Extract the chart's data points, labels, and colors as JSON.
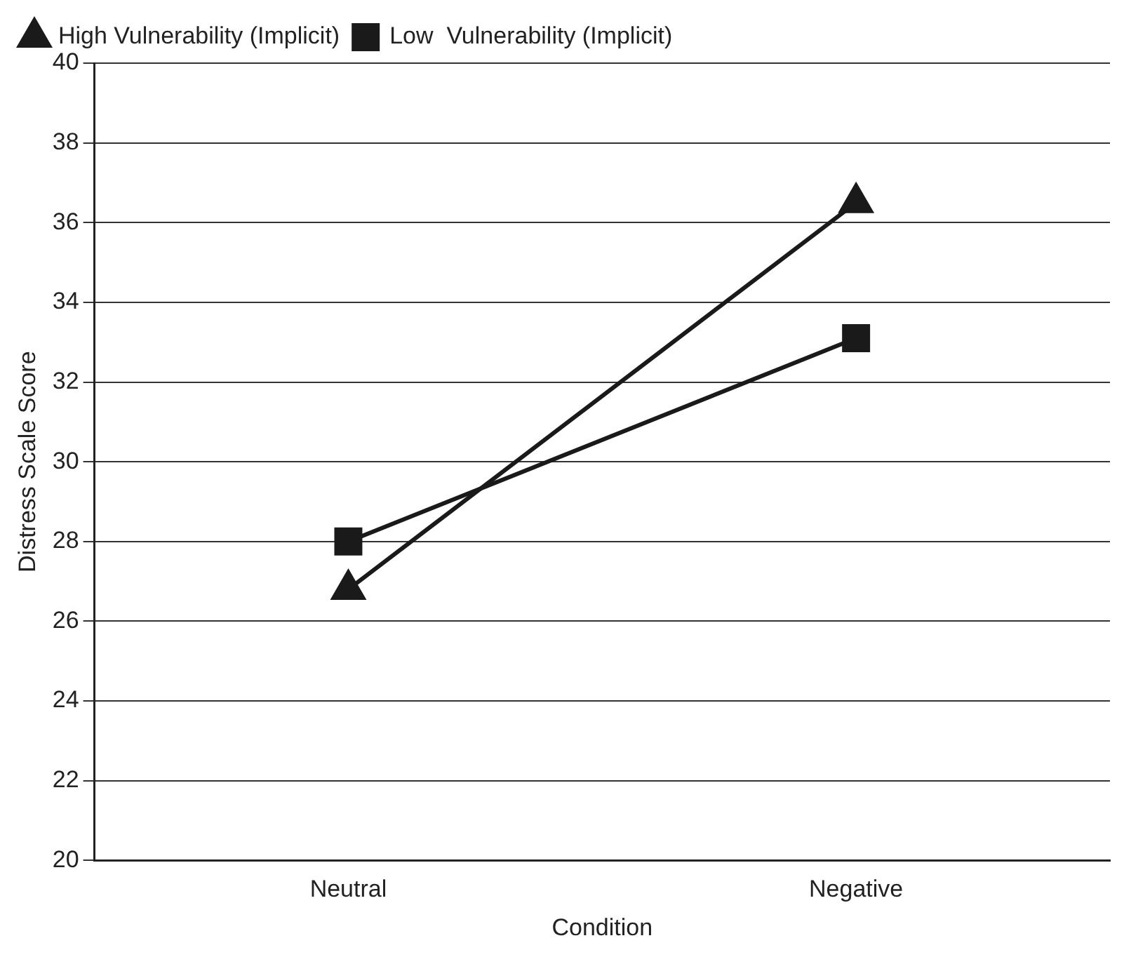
{
  "chart_data": {
    "type": "line",
    "xlabel": "Condition",
    "ylabel": "Distress Scale Score",
    "categories": [
      "Neutral",
      "Negative"
    ],
    "series": [
      {
        "name": "High Vulnerability (Implicit)",
        "color": "#1a1a1a",
        "marker": "triangle",
        "values": [
          26.8,
          36.5
        ]
      },
      {
        "name": "Low  Vulnerability (Implicit)",
        "color": "#1a1a1a",
        "marker": "square",
        "values": [
          28.0,
          33.1
        ]
      }
    ],
    "ylim": [
      20,
      40
    ],
    "yticks": [
      20,
      22,
      24,
      26,
      28,
      30,
      32,
      34,
      36,
      38,
      40
    ],
    "grid": "y",
    "legend": "top left",
    "line_style": "solid"
  }
}
